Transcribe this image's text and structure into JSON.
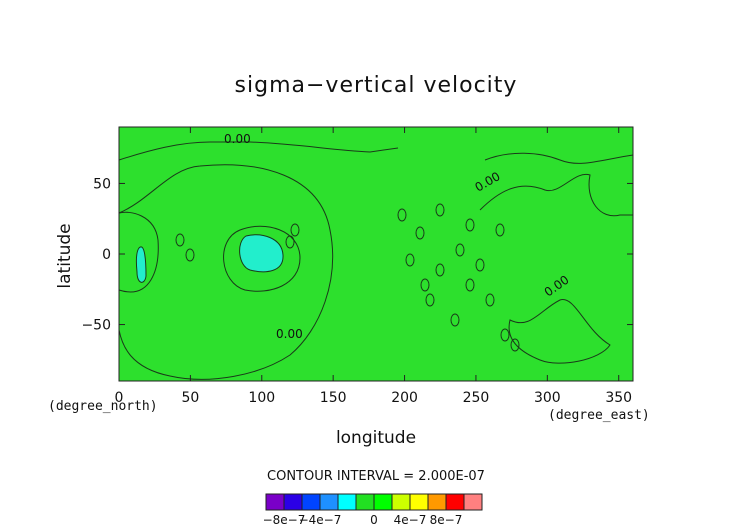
{
  "chart_data": {
    "type": "heatmap",
    "title": "sigma−vertical velocity",
    "xlabel": "longitude",
    "ylabel": "latitude",
    "x_units": "(degree_east)",
    "y_units": "(degree_north)",
    "xlim": [
      0,
      360
    ],
    "ylim": [
      -90,
      90
    ],
    "x_ticks": [
      0,
      50,
      100,
      150,
      200,
      250,
      300,
      350
    ],
    "y_ticks": [
      -50,
      0,
      50
    ],
    "y_tick_labels": [
      "−50",
      "0",
      "50"
    ],
    "contour_interval_text": "CONTOUR INTERVAL = 2.000E-07",
    "contour_labels": [
      "0.00",
      "0.00",
      "0.00",
      "0.00"
    ],
    "colorbar": {
      "colors": [
        "#7a00c8",
        "#2b00e6",
        "#0044ff",
        "#1e90ff",
        "#00ffff",
        "#22e022",
        "#00ff00",
        "#ccff00",
        "#ffff00",
        "#ff9900",
        "#ff0000",
        "#ff8080"
      ],
      "tick_labels": [
        "−8e−7",
        "−4e−7",
        "0",
        "4e−7",
        "8e−7"
      ]
    },
    "background_value_color": "#2de02d",
    "negative_region_color": "#22eecc",
    "grid": false,
    "legend": "bottom"
  }
}
